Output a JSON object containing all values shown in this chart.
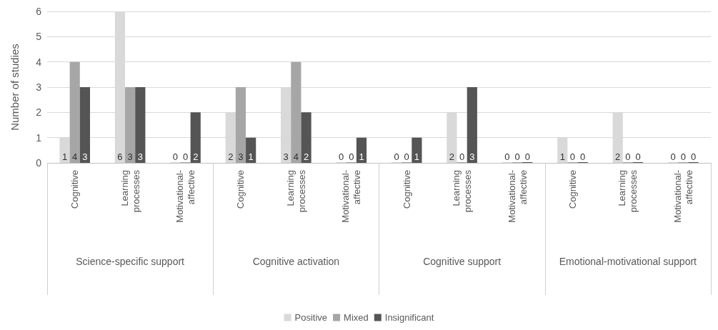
{
  "chart_data": {
    "type": "bar",
    "ylabel": "Number of studies",
    "categories": [
      "Cognitive",
      "Learning processes",
      "Motivational-affective",
      "Cognitive",
      "Learning processes",
      "Motivational-affective",
      "Cognitive",
      "Learning processes",
      "Motivational-affective",
      "Cognitive",
      "Learning processes",
      "Motivational-affective"
    ],
    "series": [
      {
        "name": "Positive",
        "color": "#d9d9d9",
        "values": [
          1,
          6,
          0,
          2,
          3,
          0,
          0,
          2,
          0,
          1,
          2,
          0
        ]
      },
      {
        "name": "Mixed",
        "color": "#a6a6a6",
        "values": [
          4,
          3,
          0,
          3,
          4,
          0,
          0,
          0,
          0,
          0,
          0,
          0
        ]
      },
      {
        "name": "Insignificant",
        "color": "#555555",
        "values": [
          3,
          3,
          2,
          1,
          2,
          1,
          1,
          3,
          0,
          0,
          0,
          0
        ]
      }
    ],
    "annotations": [
      "Science-specific support",
      "Cognitive activation",
      "Cognitive support",
      "Emotional-motivational support"
    ],
    "ylim": [
      0,
      6
    ],
    "yticks": [
      0,
      1,
      2,
      3,
      4,
      5,
      6
    ],
    "grid": "y",
    "legend": "bottom",
    "data_labels": true
  }
}
